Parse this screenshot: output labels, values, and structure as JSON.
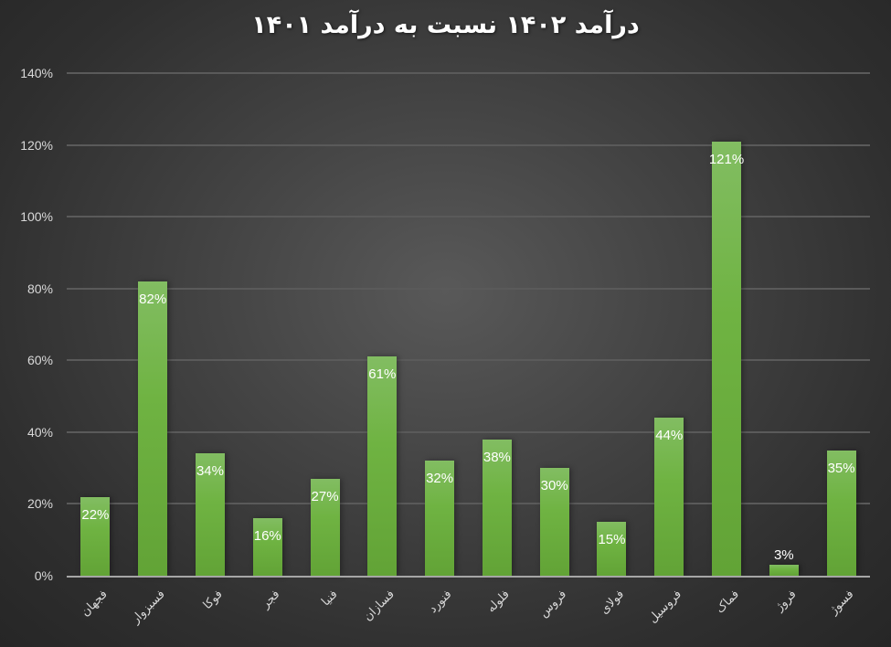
{
  "chart_data": {
    "type": "bar",
    "title": "درآمد ۱۴۰۲ نسبت به درآمد ۱۴۰۱",
    "xlabel": "",
    "ylabel": "",
    "ylim": [
      0,
      140
    ],
    "yticks": [
      "0%",
      "20%",
      "40%",
      "60%",
      "80%",
      "100%",
      "120%",
      "140%"
    ],
    "ytick_values": [
      0,
      20,
      40,
      60,
      80,
      100,
      120,
      140
    ],
    "grid": true,
    "legend": "none",
    "categories": [
      "فجهان",
      "فسبزوار",
      "فوکا",
      "فجر",
      "فنیا",
      "فسازان",
      "فنورد",
      "فلوله",
      "فروس",
      "فولای",
      "فروسیل",
      "فماک",
      "فروژ",
      "فسوژ"
    ],
    "values": [
      22,
      82,
      34,
      16,
      27,
      61,
      32,
      38,
      30,
      15,
      44,
      121,
      3,
      35
    ],
    "data_labels": [
      "22%",
      "82%",
      "34%",
      "16%",
      "27%",
      "61%",
      "32%",
      "38%",
      "30%",
      "15%",
      "44%",
      "121%",
      "3%",
      "35%"
    ],
    "bar_color": "#70AD47",
    "background_color": "#404040"
  }
}
